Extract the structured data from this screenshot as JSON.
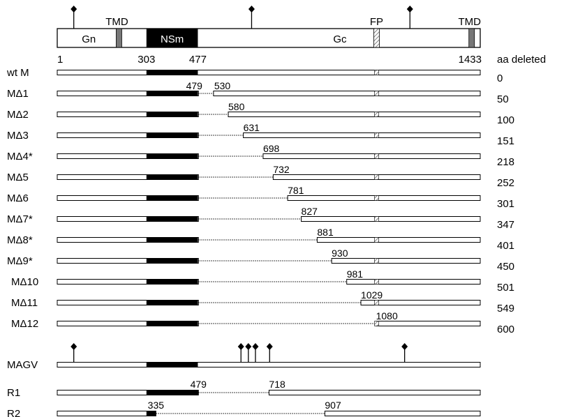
{
  "scale": {
    "aa_start": 1,
    "aa_end": 1433
  },
  "colors": {
    "line": "#000000",
    "domain_fill": "#ffffff",
    "nsm_fill": "#000000",
    "tmd_fill": "#777777",
    "fp_fill": "#bbbbbb"
  },
  "header": {
    "domains": [
      {
        "label": "Gn",
        "from": 1,
        "to": 303
      },
      {
        "label": "NSm",
        "from": 303,
        "to": 477
      },
      {
        "label": "Gc",
        "from": 477,
        "to": 1433
      }
    ],
    "features": [
      {
        "label": "TMD",
        "type": "tmd",
        "at": 210
      },
      {
        "label": "FP",
        "type": "fp",
        "at": 1082
      },
      {
        "label": "TMD",
        "type": "tmd",
        "at": 1404
      }
    ],
    "glycosylation_sites": [
      57,
      659,
      1195
    ],
    "position_labels": [
      {
        "text": "1",
        "at": 1
      },
      {
        "text": "303",
        "at": 303
      },
      {
        "text": "477",
        "at": 477
      },
      {
        "text": "1433",
        "at": 1433
      }
    ],
    "deleted_header": "aa deleted"
  },
  "rows": [
    {
      "name": "wt M",
      "del_start": null,
      "del_end": null,
      "label": "",
      "deleted": "0"
    },
    {
      "name": "MΔ1",
      "del_start": 479,
      "del_end": 530,
      "label": "479   530",
      "deleted": "50"
    },
    {
      "name": "MΔ2",
      "del_start": 479,
      "del_end": 580,
      "label": "580",
      "deleted": "100"
    },
    {
      "name": "MΔ3",
      "del_start": 479,
      "del_end": 631,
      "label": "631",
      "deleted": "151"
    },
    {
      "name": "MΔ4*",
      "del_start": 479,
      "del_end": 698,
      "label": "698",
      "deleted": "218"
    },
    {
      "name": "MΔ5",
      "del_start": 479,
      "del_end": 732,
      "label": "732",
      "deleted": "252"
    },
    {
      "name": "MΔ6",
      "del_start": 479,
      "del_end": 781,
      "label": "781",
      "deleted": "301"
    },
    {
      "name": "MΔ7*",
      "del_start": 479,
      "del_end": 827,
      "label": "827",
      "deleted": "347"
    },
    {
      "name": "MΔ8*",
      "del_start": 479,
      "del_end": 881,
      "label": "881",
      "deleted": "401"
    },
    {
      "name": "MΔ9*",
      "del_start": 479,
      "del_end": 930,
      "label": "930",
      "deleted": "450"
    },
    {
      "name": "MΔ10",
      "del_start": 479,
      "del_end": 981,
      "label": "981",
      "deleted": "501"
    },
    {
      "name": "MΔ11",
      "del_start": 479,
      "del_end": 1029,
      "label": "1029",
      "deleted": "549"
    },
    {
      "name": "MΔ12",
      "del_start": 479,
      "del_end": 1080,
      "label": "1080",
      "deleted": "600"
    }
  ],
  "magv": {
    "name": "MAGV",
    "glycosylation_sites": [
      57,
      623,
      648,
      672,
      720,
      1177
    ]
  },
  "r_constructs": [
    {
      "name": "R1",
      "del_start": 479,
      "del_end": 718,
      "label_left": "479",
      "label_right": "718",
      "full_nsm": true
    },
    {
      "name": "R2",
      "del_start": 335,
      "del_end": 907,
      "label_left": "335",
      "label_right": "907",
      "full_nsm": false
    }
  ]
}
